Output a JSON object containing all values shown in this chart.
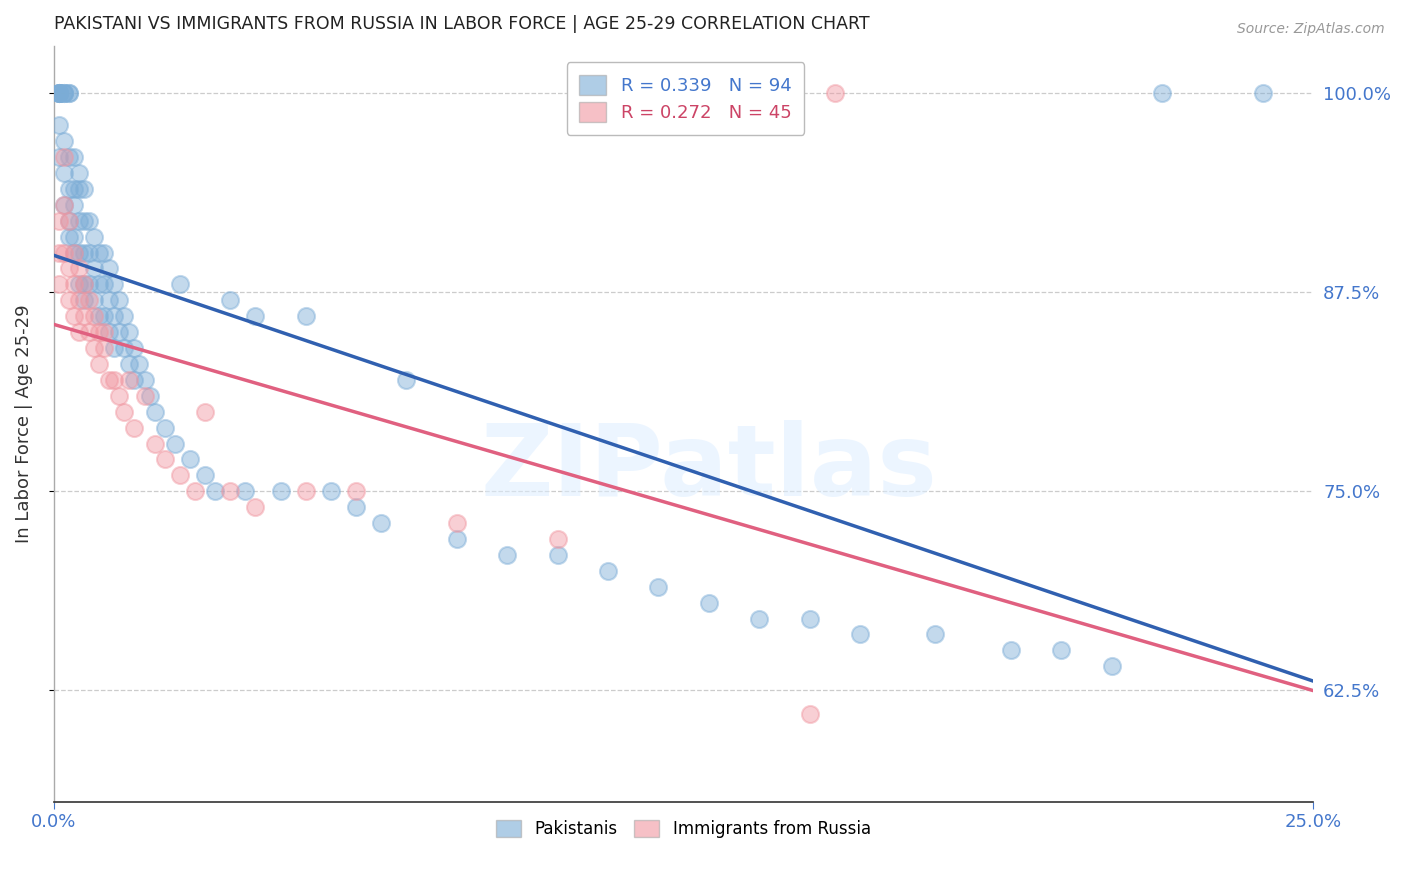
{
  "title": "PAKISTANI VS IMMIGRANTS FROM RUSSIA IN LABOR FORCE | AGE 25-29 CORRELATION CHART",
  "source": "Source: ZipAtlas.com",
  "ylabel": "In Labor Force | Age 25-29",
  "xlim": [
    0.0,
    0.25
  ],
  "ylim": [
    0.555,
    1.03
  ],
  "yticks": [
    0.625,
    0.75,
    0.875,
    1.0
  ],
  "ytick_labels": [
    "62.5%",
    "75.0%",
    "87.5%",
    "100.0%"
  ],
  "xticks": [
    0.0,
    0.25
  ],
  "xtick_labels": [
    "0.0%",
    "25.0%"
  ],
  "blue_R": 0.339,
  "blue_N": 94,
  "pink_R": 0.272,
  "pink_N": 45,
  "blue_color": "#7bacd6",
  "pink_color": "#f096a0",
  "blue_line_color": "#3060b0",
  "pink_line_color": "#e06080",
  "watermark": "ZIPatlas",
  "blue_x": [
    0.001,
    0.001,
    0.001,
    0.001,
    0.001,
    0.001,
    0.001,
    0.002,
    0.002,
    0.002,
    0.002,
    0.002,
    0.002,
    0.003,
    0.003,
    0.003,
    0.003,
    0.003,
    0.003,
    0.004,
    0.004,
    0.004,
    0.004,
    0.004,
    0.005,
    0.005,
    0.005,
    0.005,
    0.005,
    0.006,
    0.006,
    0.006,
    0.006,
    0.006,
    0.007,
    0.007,
    0.007,
    0.008,
    0.008,
    0.008,
    0.009,
    0.009,
    0.009,
    0.01,
    0.01,
    0.01,
    0.011,
    0.011,
    0.011,
    0.012,
    0.012,
    0.012,
    0.013,
    0.013,
    0.014,
    0.014,
    0.015,
    0.015,
    0.016,
    0.016,
    0.017,
    0.018,
    0.019,
    0.02,
    0.022,
    0.024,
    0.025,
    0.027,
    0.03,
    0.032,
    0.035,
    0.038,
    0.04,
    0.045,
    0.05,
    0.055,
    0.06,
    0.065,
    0.07,
    0.08,
    0.09,
    0.1,
    0.11,
    0.12,
    0.13,
    0.14,
    0.15,
    0.16,
    0.175,
    0.19,
    0.2,
    0.21,
    0.22,
    0.24
  ],
  "blue_y": [
    1.0,
    1.0,
    1.0,
    1.0,
    1.0,
    0.98,
    0.96,
    1.0,
    1.0,
    1.0,
    0.97,
    0.95,
    0.93,
    1.0,
    1.0,
    0.96,
    0.94,
    0.92,
    0.91,
    0.96,
    0.94,
    0.93,
    0.91,
    0.9,
    0.95,
    0.94,
    0.92,
    0.9,
    0.88,
    0.94,
    0.92,
    0.9,
    0.88,
    0.87,
    0.92,
    0.9,
    0.88,
    0.91,
    0.89,
    0.87,
    0.9,
    0.88,
    0.86,
    0.9,
    0.88,
    0.86,
    0.89,
    0.87,
    0.85,
    0.88,
    0.86,
    0.84,
    0.87,
    0.85,
    0.86,
    0.84,
    0.85,
    0.83,
    0.84,
    0.82,
    0.83,
    0.82,
    0.81,
    0.8,
    0.79,
    0.78,
    0.88,
    0.77,
    0.76,
    0.75,
    0.87,
    0.75,
    0.86,
    0.75,
    0.86,
    0.75,
    0.74,
    0.73,
    0.82,
    0.72,
    0.71,
    0.71,
    0.7,
    0.69,
    0.68,
    0.67,
    0.67,
    0.66,
    0.66,
    0.65,
    0.65,
    0.64,
    1.0,
    1.0
  ],
  "pink_x": [
    0.001,
    0.001,
    0.001,
    0.002,
    0.002,
    0.002,
    0.003,
    0.003,
    0.003,
    0.004,
    0.004,
    0.004,
    0.005,
    0.005,
    0.005,
    0.006,
    0.006,
    0.007,
    0.007,
    0.008,
    0.008,
    0.009,
    0.009,
    0.01,
    0.01,
    0.011,
    0.012,
    0.013,
    0.014,
    0.015,
    0.016,
    0.018,
    0.02,
    0.022,
    0.025,
    0.028,
    0.03,
    0.035,
    0.04,
    0.05,
    0.06,
    0.08,
    0.1,
    0.15,
    0.155
  ],
  "pink_y": [
    0.92,
    0.9,
    0.88,
    0.96,
    0.93,
    0.9,
    0.92,
    0.89,
    0.87,
    0.9,
    0.88,
    0.86,
    0.89,
    0.87,
    0.85,
    0.88,
    0.86,
    0.87,
    0.85,
    0.86,
    0.84,
    0.85,
    0.83,
    0.85,
    0.84,
    0.82,
    0.82,
    0.81,
    0.8,
    0.82,
    0.79,
    0.81,
    0.78,
    0.77,
    0.76,
    0.75,
    0.8,
    0.75,
    0.74,
    0.75,
    0.75,
    0.73,
    0.72,
    0.61,
    1.0
  ]
}
